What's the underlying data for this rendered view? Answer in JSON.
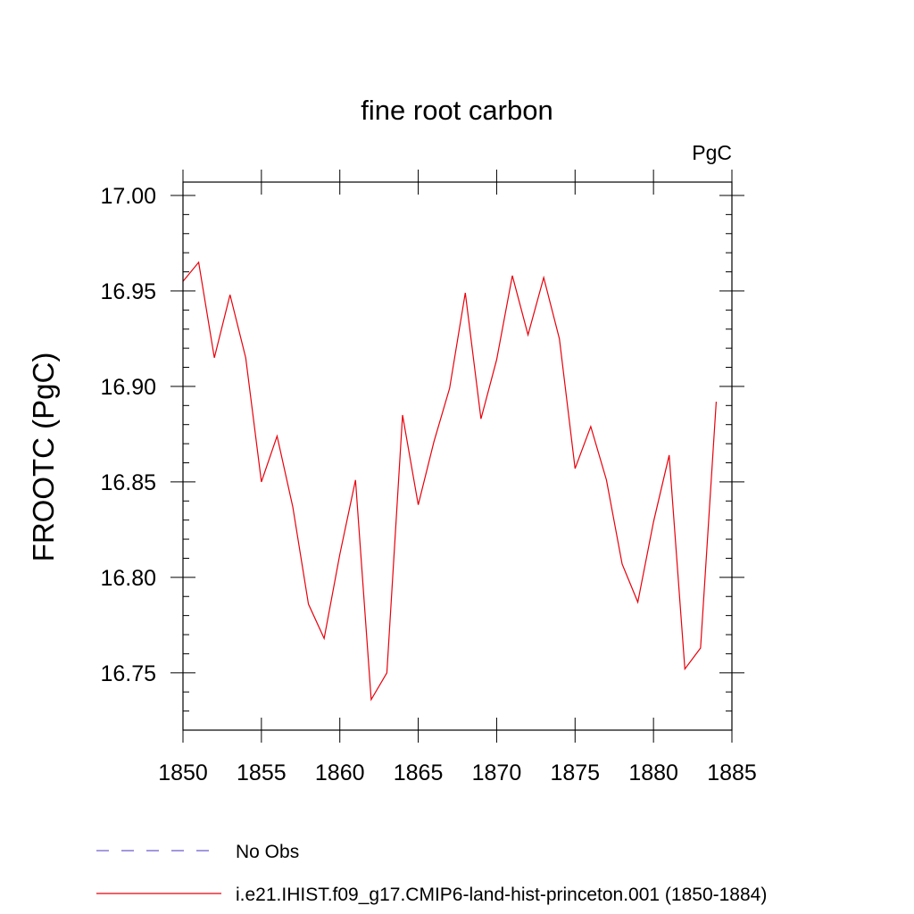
{
  "chart_data": {
    "type": "line",
    "title": "fine root carbon",
    "units_label": "PgC",
    "ylabel": "FROOTC  (PgC)",
    "xlabel": "",
    "xlim": [
      1850,
      1885
    ],
    "ylim": [
      16.72,
      17.007
    ],
    "x_ticks": [
      1850,
      1855,
      1860,
      1865,
      1870,
      1875,
      1880,
      1885
    ],
    "y_ticks": [
      16.75,
      16.8,
      16.85,
      16.9,
      16.95,
      17.0
    ],
    "y_tick_labels": [
      "16.75",
      "16.80",
      "16.85",
      "16.90",
      "16.95",
      "17.00"
    ],
    "grid": false,
    "legend_position": "bottom",
    "legend": [
      {
        "label": "No Obs",
        "color": "#6a5acd",
        "dash": "dashed"
      },
      {
        "label": "i.e21.IHIST.f09_g17.CMIP6-land-hist-princeton.001 (1850-1884)",
        "color": "#e8000b",
        "dash": "solid"
      }
    ],
    "series": [
      {
        "color": "#e8000b",
        "x": [
          1850,
          1851,
          1852,
          1853,
          1854,
          1855,
          1856,
          1857,
          1858,
          1859,
          1860,
          1861,
          1862,
          1863,
          1864,
          1865,
          1866,
          1867,
          1868,
          1869,
          1870,
          1871,
          1872,
          1873,
          1874,
          1875,
          1876,
          1877,
          1878,
          1879,
          1880,
          1881,
          1882,
          1883,
          1884
        ],
        "values": [
          16.955,
          16.965,
          16.915,
          16.948,
          16.915,
          16.85,
          16.874,
          16.837,
          16.786,
          16.768,
          16.812,
          16.851,
          16.736,
          16.75,
          16.885,
          16.838,
          16.871,
          16.899,
          16.949,
          16.883,
          16.914,
          16.958,
          16.927,
          16.957,
          16.925,
          16.857,
          16.879,
          16.851,
          16.807,
          16.787,
          16.829,
          16.864,
          16.752,
          16.763,
          16.892
        ]
      }
    ]
  }
}
